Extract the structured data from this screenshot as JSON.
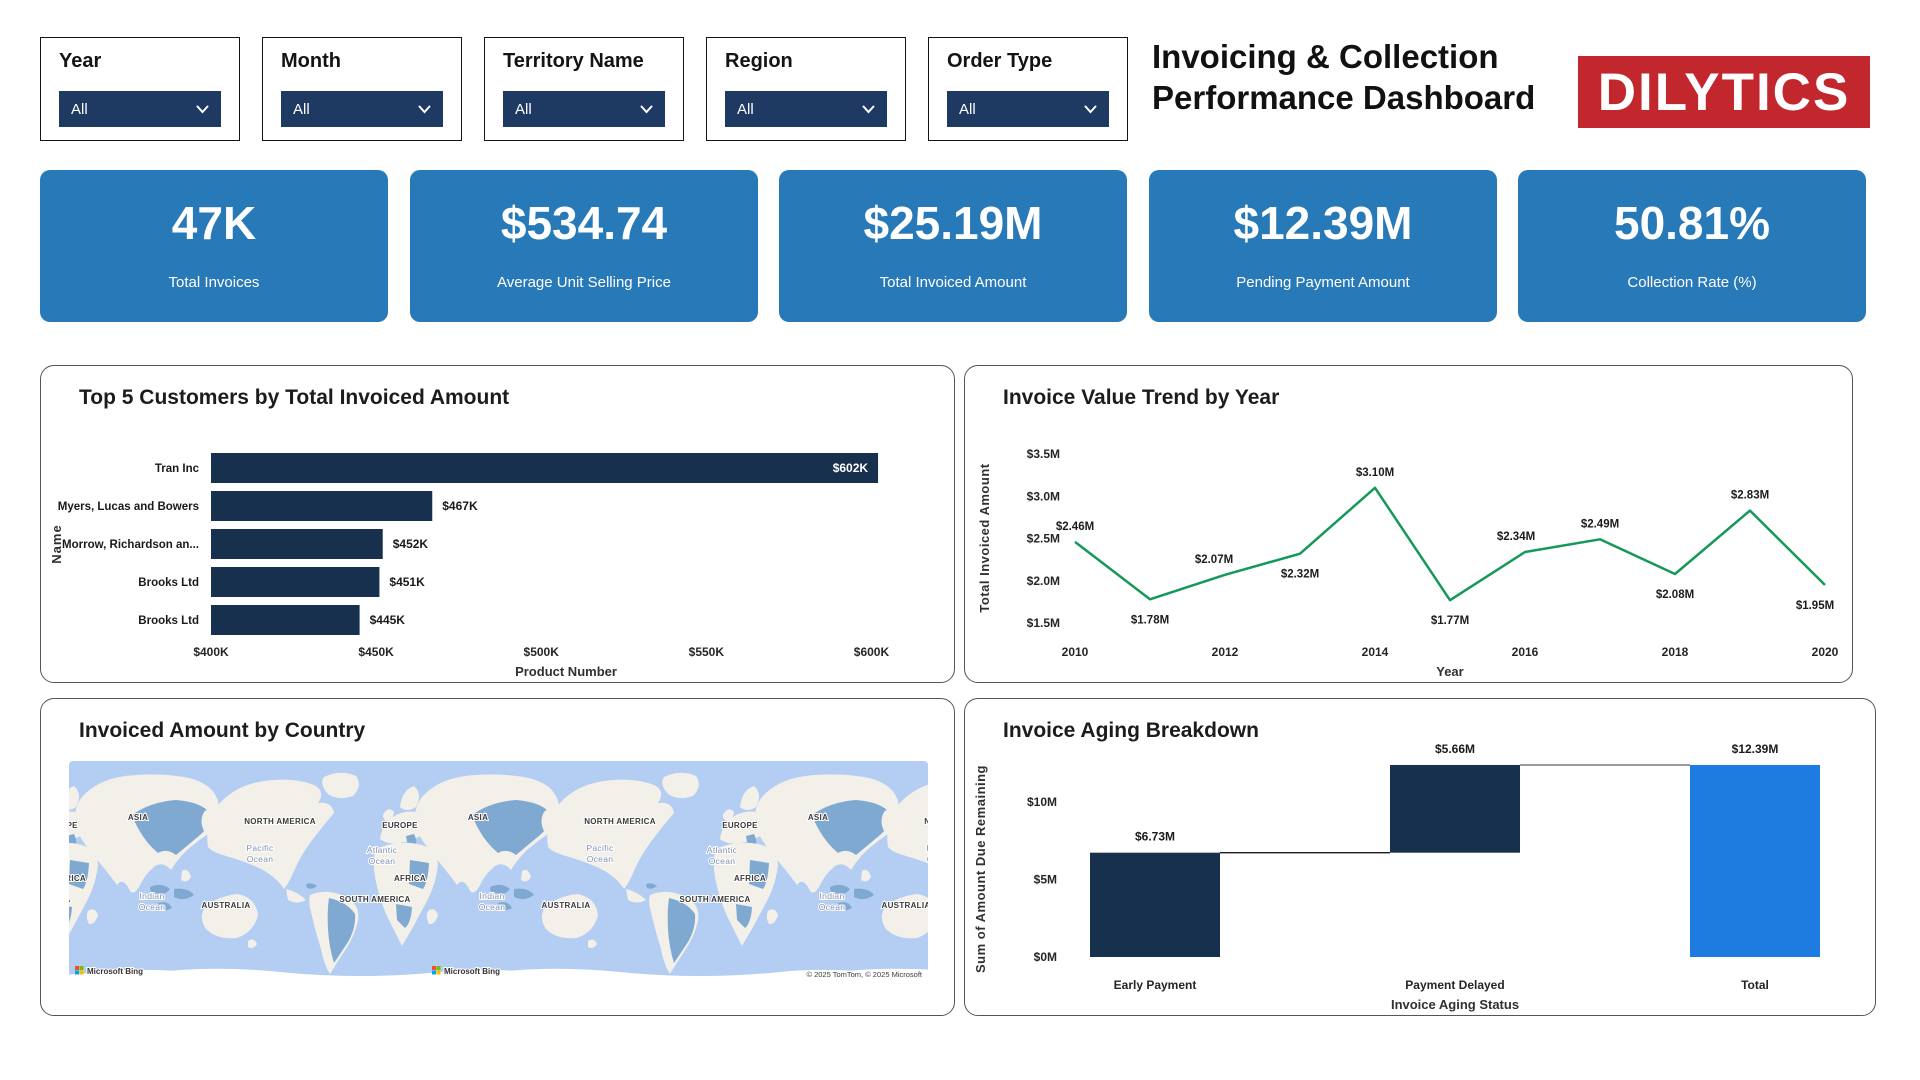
{
  "header": {
    "filters": [
      {
        "label": "Year",
        "value": "All"
      },
      {
        "label": "Month",
        "value": "All"
      },
      {
        "label": "Territory Name",
        "value": "All"
      },
      {
        "label": "Region",
        "value": "All"
      },
      {
        "label": "Order Type",
        "value": "All"
      }
    ],
    "title_line1": "Invoicing & Collection",
    "title_line2": "Performance Dashboard",
    "logo_text": "DILYTICS"
  },
  "kpis": [
    {
      "value": "47K",
      "label": "Total Invoices"
    },
    {
      "value": "$534.74",
      "label": "Average Unit Selling Price"
    },
    {
      "value": "$25.19M",
      "label": "Total Invoiced Amount"
    },
    {
      "value": "$12.39M",
      "label": "Pending Payment Amount"
    },
    {
      "value": "50.81%",
      "label": "Collection Rate (%)"
    }
  ],
  "colors": {
    "kpi_card_blue": "#2879b8",
    "navy_bar": "#16304d",
    "dropdown_navy": "#1e3a63",
    "line_green": "#149959",
    "total_bar_blue": "#1e7ce0",
    "logo_red": "#c1272d",
    "map_ocean": "#b4cdf2",
    "map_land": "#f2f0e9",
    "map_highlight": "#7fa9d1"
  },
  "chart_data": [
    {
      "id": "top_customers",
      "type": "bar",
      "orientation": "horizontal",
      "title": "Top 5 Customers by Total Invoiced Amount",
      "categories": [
        "Tran Inc",
        "Myers, Lucas and Bowers",
        "Morrow, Richardson an...",
        "Brooks Ltd",
        "Brooks Ltd"
      ],
      "values": [
        602,
        467,
        452,
        451,
        445
      ],
      "value_labels": [
        "$602K",
        "$467K",
        "$452K",
        "$451K",
        "$445K"
      ],
      "xlabel": "Product Number",
      "ylabel": "Name",
      "xlim": [
        400,
        615
      ],
      "xticks": [
        400,
        450,
        500,
        550,
        600
      ],
      "xtick_labels": [
        "$400K",
        "$450K",
        "$500K",
        "$550K",
        "$600K"
      ],
      "legend": "none",
      "grid": false
    },
    {
      "id": "invoice_trend",
      "type": "line",
      "title": "Invoice Value Trend by Year",
      "x": [
        2010,
        2011,
        2012,
        2013,
        2014,
        2015,
        2016,
        2017,
        2018,
        2019,
        2020
      ],
      "values": [
        2.46,
        1.78,
        2.07,
        2.32,
        3.1,
        1.77,
        2.34,
        2.49,
        2.08,
        2.83,
        1.95
      ],
      "point_labels": [
        "$2.46M",
        "$1.78M",
        "$2.07M",
        "$2.32M",
        "$3.10M",
        "$1.77M",
        "$2.34M",
        "$2.49M",
        "$2.08M",
        "$2.83M",
        "$1.95M"
      ],
      "xlabel": "Year",
      "ylabel": "Total Invoiced Amount",
      "ylim": [
        1.5,
        3.5
      ],
      "ytick_values": [
        1.5,
        2.0,
        2.5,
        3.0,
        3.5
      ],
      "ytick_labels": [
        "$1.5M",
        "$2.0M",
        "$2.5M",
        "$3.0M",
        "$3.5M"
      ],
      "xtick_labels": [
        "2010",
        "2012",
        "2014",
        "2016",
        "2018",
        "2020"
      ],
      "legend": "none",
      "grid": false
    },
    {
      "id": "invoiced_by_country",
      "type": "map",
      "title": "Invoiced Amount by Country",
      "continent_labels": [
        "ASIA",
        "NORTH AMERICA",
        "EUROPE",
        "AFRICA",
        "SOUTH AMERICA",
        "AUSTRALIA"
      ],
      "ocean_labels": [
        "Pacific Ocean",
        "Atlantic Ocean",
        "Indian Ocean"
      ],
      "attribution": "Microsoft Bing",
      "copyright": "© 2025 TomTom, © 2025 Microsoft"
    },
    {
      "id": "invoice_aging",
      "type": "waterfall",
      "title": "Invoice Aging Breakdown",
      "categories": [
        "Early Payment",
        "Payment Delayed",
        "Total"
      ],
      "segments": [
        {
          "start": 0,
          "end": 6.73
        },
        {
          "start": 6.73,
          "end": 12.39
        },
        {
          "start": 0,
          "end": 12.39
        }
      ],
      "bar_labels": [
        "$6.73M",
        "$5.66M",
        "$12.39M"
      ],
      "xlabel": "Invoice Aging Status",
      "ylabel": "Sum of Amount Due Remaining",
      "ylim": [
        0,
        13.5
      ],
      "ytick_values": [
        0,
        5,
        10
      ],
      "ytick_labels": [
        "$0M",
        "$5M",
        "$10M"
      ],
      "legend": "none",
      "grid": false
    }
  ]
}
